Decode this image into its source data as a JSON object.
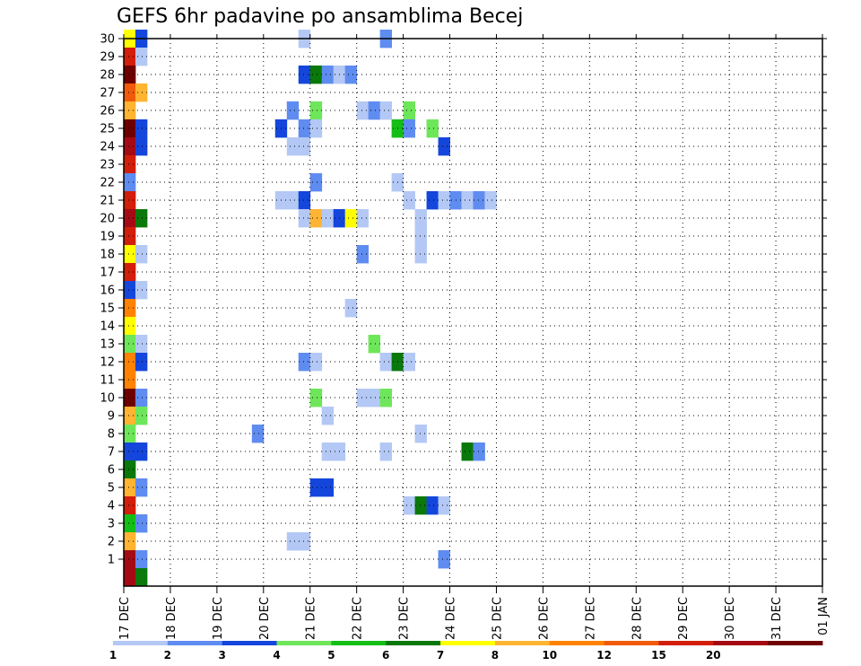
{
  "chart_data": {
    "type": "heatmap",
    "title": "GEFS 6hr padavine po ansamblima Becej",
    "xlabel": "",
    "ylabel": "",
    "x_tick_labels": [
      "17 DEC",
      "18 DEC",
      "19 DEC",
      "20 DEC",
      "21 DEC",
      "22 DEC",
      "23 DEC",
      "24 DEC",
      "25 DEC",
      "26 DEC",
      "27 DEC",
      "28 DEC",
      "29 DEC",
      "30 DEC",
      "31 DEC",
      "01 JAN"
    ],
    "y_tick_labels": [
      "1",
      "2",
      "3",
      "4",
      "5",
      "6",
      "7",
      "8",
      "9",
      "10",
      "11",
      "12",
      "13",
      "14",
      "15",
      "16",
      "17",
      "18",
      "19",
      "20",
      "21",
      "22",
      "23",
      "24",
      "25",
      "26",
      "27",
      "28",
      "29",
      "30"
    ],
    "x_step_hours": 6,
    "grid": true,
    "legend_position": "bottom",
    "color_bins": [
      {
        "label": "1",
        "color": "#b4c8f5"
      },
      {
        "label": "2",
        "color": "#5f8cf0"
      },
      {
        "label": "3",
        "color": "#1446dc"
      },
      {
        "label": "4",
        "color": "#6ee65a"
      },
      {
        "label": "5",
        "color": "#14be14"
      },
      {
        "label": "6",
        "color": "#0a780a"
      },
      {
        "label": "7",
        "color": "#ffff00"
      },
      {
        "label": "8",
        "color": "#ffb432"
      },
      {
        "label": "10",
        "color": "#ff8200"
      },
      {
        "label": "12",
        "color": "#f05a0a"
      },
      {
        "label": "15",
        "color": "#d21e0a"
      },
      {
        "label": "20",
        "color": "#a50a14"
      },
      {
        "label": "",
        "color": "#6e0000"
      }
    ],
    "cells_note": "each cell: [ensemble member, time step (6-hour steps from 17 DEC 00Z), precipitation class index into color_bins]",
    "cells": [
      [
        30,
        0,
        6
      ],
      [
        30,
        1,
        2
      ],
      [
        30,
        15,
        0
      ],
      [
        30,
        22,
        1
      ],
      [
        29,
        0,
        10
      ],
      [
        29,
        1,
        0
      ],
      [
        28,
        0,
        12
      ],
      [
        28,
        15,
        2
      ],
      [
        28,
        16,
        5
      ],
      [
        28,
        17,
        1
      ],
      [
        28,
        18,
        0
      ],
      [
        28,
        19,
        1
      ],
      [
        27,
        0,
        9
      ],
      [
        27,
        1,
        7
      ],
      [
        26,
        0,
        7
      ],
      [
        26,
        14,
        1
      ],
      [
        26,
        16,
        3
      ],
      [
        26,
        20,
        0
      ],
      [
        26,
        21,
        1
      ],
      [
        26,
        22,
        0
      ],
      [
        26,
        24,
        3
      ],
      [
        25,
        0,
        12
      ],
      [
        25,
        1,
        2
      ],
      [
        25,
        13,
        2
      ],
      [
        25,
        15,
        1
      ],
      [
        25,
        16,
        0
      ],
      [
        25,
        23,
        4
      ],
      [
        25,
        24,
        1
      ],
      [
        25,
        26,
        3
      ],
      [
        24,
        0,
        11
      ],
      [
        24,
        1,
        2
      ],
      [
        24,
        14,
        0
      ],
      [
        24,
        15,
        0
      ],
      [
        24,
        27,
        2
      ],
      [
        23,
        0,
        10
      ],
      [
        22,
        0,
        1
      ],
      [
        22,
        16,
        1
      ],
      [
        22,
        23,
        0
      ],
      [
        21,
        0,
        10
      ],
      [
        21,
        13,
        0
      ],
      [
        21,
        14,
        0
      ],
      [
        21,
        15,
        2
      ],
      [
        21,
        24,
        0
      ],
      [
        21,
        26,
        2
      ],
      [
        21,
        27,
        0
      ],
      [
        21,
        28,
        1
      ],
      [
        21,
        29,
        0
      ],
      [
        21,
        30,
        1
      ],
      [
        21,
        31,
        0
      ],
      [
        20,
        0,
        11
      ],
      [
        20,
        1,
        5
      ],
      [
        20,
        15,
        0
      ],
      [
        20,
        16,
        7
      ],
      [
        20,
        17,
        0
      ],
      [
        20,
        18,
        2
      ],
      [
        20,
        19,
        6
      ],
      [
        20,
        20,
        0
      ],
      [
        20,
        25,
        0
      ],
      [
        19,
        0,
        10
      ],
      [
        19,
        25,
        0
      ],
      [
        18,
        0,
        6
      ],
      [
        18,
        1,
        0
      ],
      [
        18,
        20,
        1
      ],
      [
        18,
        25,
        0
      ],
      [
        17,
        0,
        10
      ],
      [
        16,
        0,
        2
      ],
      [
        16,
        1,
        0
      ],
      [
        15,
        0,
        8
      ],
      [
        15,
        19,
        0
      ],
      [
        14,
        0,
        6
      ],
      [
        13,
        0,
        3
      ],
      [
        13,
        1,
        0
      ],
      [
        13,
        21,
        3
      ],
      [
        12,
        0,
        8
      ],
      [
        12,
        1,
        2
      ],
      [
        12,
        15,
        1
      ],
      [
        12,
        16,
        0
      ],
      [
        12,
        22,
        0
      ],
      [
        12,
        23,
        5
      ],
      [
        12,
        24,
        0
      ],
      [
        11,
        0,
        8
      ],
      [
        10,
        0,
        12
      ],
      [
        10,
        1,
        1
      ],
      [
        10,
        16,
        3
      ],
      [
        10,
        20,
        0
      ],
      [
        10,
        21,
        0
      ],
      [
        10,
        22,
        3
      ],
      [
        9,
        0,
        7
      ],
      [
        9,
        1,
        3
      ],
      [
        9,
        17,
        0
      ],
      [
        8,
        0,
        3
      ],
      [
        8,
        11,
        1
      ],
      [
        8,
        25,
        0
      ],
      [
        7,
        0,
        2
      ],
      [
        7,
        1,
        2
      ],
      [
        7,
        17,
        0
      ],
      [
        7,
        18,
        0
      ],
      [
        7,
        22,
        0
      ],
      [
        7,
        29,
        5
      ],
      [
        7,
        30,
        1
      ],
      [
        6,
        0,
        5
      ],
      [
        5,
        0,
        7
      ],
      [
        5,
        1,
        1
      ],
      [
        5,
        16,
        2
      ],
      [
        5,
        17,
        2
      ],
      [
        4,
        0,
        10
      ],
      [
        4,
        24,
        0
      ],
      [
        4,
        25,
        5
      ],
      [
        4,
        26,
        2
      ],
      [
        4,
        27,
        0
      ],
      [
        3,
        0,
        4
      ],
      [
        3,
        1,
        1
      ],
      [
        2,
        0,
        7
      ],
      [
        2,
        14,
        0
      ],
      [
        2,
        15,
        0
      ],
      [
        1,
        0,
        11
      ],
      [
        1,
        1,
        1
      ],
      [
        1,
        27,
        1
      ],
      [
        0,
        0,
        11
      ],
      [
        0,
        1,
        5
      ]
    ]
  }
}
